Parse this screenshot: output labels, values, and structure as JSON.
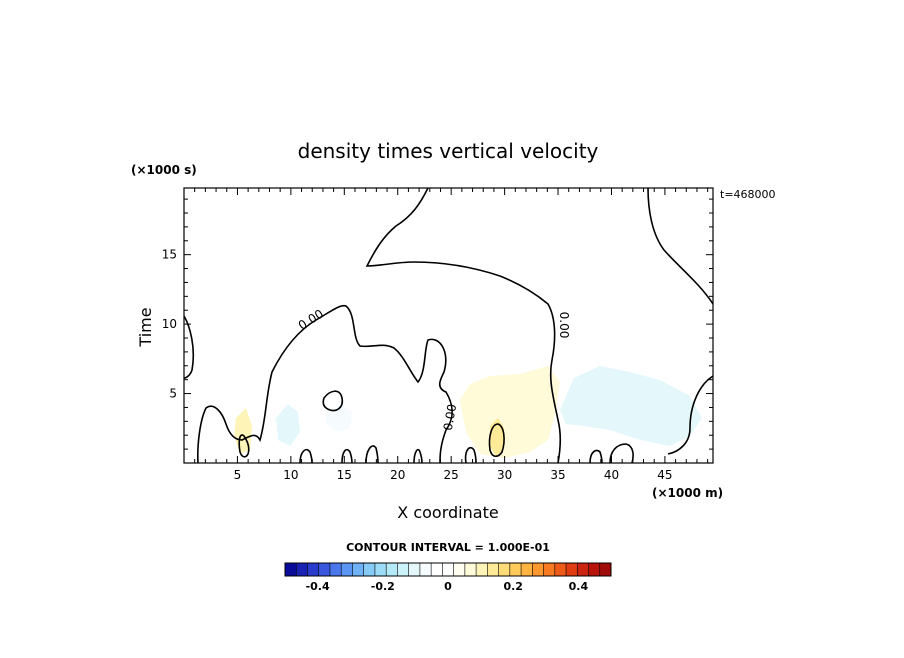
{
  "chart_data": {
    "type": "heatmap",
    "title": "density times vertical velocity",
    "xlabel": "X coordinate",
    "ylabel": "Time",
    "x_unit": "(×1000 m)",
    "y_unit": "(×1000 s)",
    "time_stamp": "t=468000",
    "xlim": [
      0,
      49.5
    ],
    "ylim": [
      0,
      19.8
    ],
    "x_ticks": [
      5,
      10,
      15,
      20,
      25,
      30,
      35,
      40,
      45
    ],
    "x_tick_labels": [
      "5",
      "10",
      "15",
      "20",
      "25",
      "30",
      "35",
      "40",
      "45"
    ],
    "y_ticks": [
      5,
      10,
      15
    ],
    "y_tick_labels": [
      "5",
      "10",
      "15"
    ],
    "contour_labels": [
      "0.00",
      "0.00",
      "0.00"
    ],
    "contour_interval_text": "CONTOUR INTERVAL = 1.000E-01",
    "colorbar": {
      "range": [
        -0.5,
        0.5
      ],
      "ticks": [
        -0.4,
        -0.2,
        0,
        0.2,
        0.4
      ],
      "tick_labels": [
        "-0.4",
        "-0.2",
        "0",
        "0.2",
        "0.4"
      ],
      "colors": [
        "#0c0c9a",
        "#1a22b4",
        "#2a3ccc",
        "#3a58de",
        "#4a78ec",
        "#5c96f4",
        "#70b2f8",
        "#86caf8",
        "#9cdcf8",
        "#b4eaf8",
        "#ccf2fa",
        "#e4f8fc",
        "#f6fcfe",
        "#ffffff",
        "#ffffff",
        "#fffef0",
        "#fffad8",
        "#fff4b8",
        "#ffea98",
        "#ffdc78",
        "#ffca5a",
        "#ffb442",
        "#fd9830",
        "#f87a22",
        "#ee5a18",
        "#e03c12",
        "#cc2410",
        "#b8140c",
        "#a00c0a"
      ]
    },
    "fields": [
      {
        "name": "light-blue region",
        "value": -0.03
      },
      {
        "name": "blue patch near x 10",
        "value": -0.12
      },
      {
        "name": "blue patch near x 14",
        "value": -0.08
      },
      {
        "name": "blue patch near x 40",
        "value": -0.1
      },
      {
        "name": "yellow patch near x 6",
        "value": 0.1
      },
      {
        "name": "yellow region near x 29",
        "value": 0.08
      },
      {
        "name": "yellow core near x 29",
        "value": 0.14
      }
    ]
  }
}
